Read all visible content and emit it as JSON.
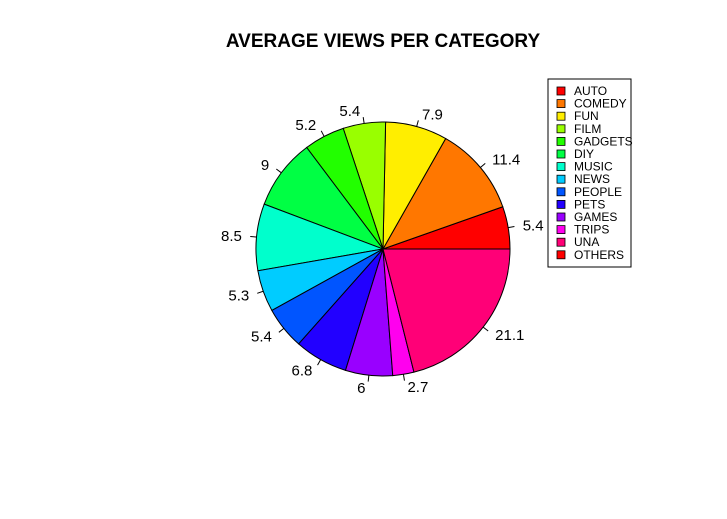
{
  "chart_data": {
    "type": "pie",
    "title": "AVERAGE VIEWS PER CATEGORY",
    "slices": [
      {
        "label": "AUTO",
        "value": 5.4,
        "display": "5.4",
        "color": "#ff0000"
      },
      {
        "label": "COMEDY",
        "value": 11.4,
        "display": "11.4",
        "color": "#ff7700"
      },
      {
        "label": "FUN",
        "value": 7.9,
        "display": "7.9",
        "color": "#ffee00"
      },
      {
        "label": "FILM",
        "value": 5.4,
        "display": "5.4",
        "color": "#99ff00"
      },
      {
        "label": "GADGETS",
        "value": 5.2,
        "display": "5.2",
        "color": "#22ff00"
      },
      {
        "label": "DIY",
        "value": 9,
        "display": "9",
        "color": "#00ff44"
      },
      {
        "label": "MUSIC",
        "value": 8.5,
        "display": "8.5",
        "color": "#00ffcc"
      },
      {
        "label": "NEWS",
        "value": 5.3,
        "display": "5.3",
        "color": "#00ccff"
      },
      {
        "label": "PEOPLE",
        "value": 5.4,
        "display": "5.4",
        "color": "#0055ff"
      },
      {
        "label": "PETS",
        "value": 6.8,
        "display": "6.8",
        "color": "#2200ff"
      },
      {
        "label": "GAMES",
        "value": 6,
        "display": "6",
        "color": "#9900ff"
      },
      {
        "label": "TRIPS",
        "value": 2.7,
        "display": "2.7",
        "color": "#ff00ee"
      },
      {
        "label": "UNA",
        "value": 21.1,
        "display": "21.1",
        "color": "#ff0077"
      }
    ],
    "legend": {
      "placement": "top-right",
      "entries": [
        {
          "label": "AUTO",
          "color": "#ff0000"
        },
        {
          "label": "COMEDY",
          "color": "#ff7700"
        },
        {
          "label": "FUN",
          "color": "#ffee00"
        },
        {
          "label": "FILM",
          "color": "#99ff00"
        },
        {
          "label": "GADGETS",
          "color": "#22ff00"
        },
        {
          "label": "DIY",
          "color": "#00ff44"
        },
        {
          "label": "MUSIC",
          "color": "#00ffcc"
        },
        {
          "label": "NEWS",
          "color": "#00ccff"
        },
        {
          "label": "PEOPLE",
          "color": "#0055ff"
        },
        {
          "label": "PETS",
          "color": "#2200ff"
        },
        {
          "label": "GAMES",
          "color": "#9900ff"
        },
        {
          "label": "TRIPS",
          "color": "#ff00ee"
        },
        {
          "label": "UNA",
          "color": "#ff0077"
        },
        {
          "label": "OTHERS",
          "color": "#ff0000"
        }
      ]
    }
  }
}
